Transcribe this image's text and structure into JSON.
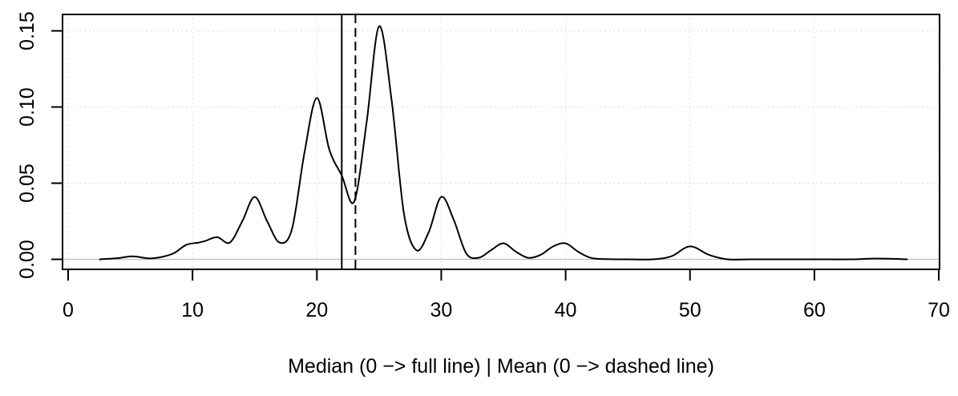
{
  "chart_data": {
    "type": "line",
    "title": "",
    "xlabel": "Median (0 −> full line) | Mean (0 −> dashed line)",
    "ylabel": "",
    "xlim": [
      0,
      70
    ],
    "ylim": [
      0,
      0.15
    ],
    "x_ticks": [
      0,
      10,
      20,
      30,
      40,
      50,
      60,
      70
    ],
    "y_ticks": [
      0.0,
      0.05,
      0.1,
      0.15
    ],
    "x_tick_labels": [
      "0",
      "10",
      "20",
      "30",
      "40",
      "50",
      "60",
      "70"
    ],
    "y_tick_labels": [
      "0.00",
      "0.05",
      "0.10",
      "0.15"
    ],
    "grid": true,
    "grid_style": "dotted",
    "series": [
      {
        "style": "solid",
        "color": "#000000",
        "x": [
          2.5,
          4,
          5.2,
          6.5,
          7.5,
          8.5,
          9.5,
          10.5,
          11,
          12,
          13,
          14,
          15,
          16,
          17,
          18,
          19,
          20,
          21,
          22,
          23,
          24,
          25,
          26,
          27,
          28,
          29,
          30,
          31,
          32,
          33,
          34,
          35,
          36,
          37,
          38,
          39,
          40,
          41,
          42,
          43,
          45,
          47,
          48.5,
          50,
          51.5,
          53,
          55,
          60,
          63,
          65,
          67.5
        ],
        "y": [
          0.0,
          0.0008,
          0.002,
          0.0006,
          0.0015,
          0.004,
          0.0095,
          0.011,
          0.012,
          0.0145,
          0.011,
          0.025,
          0.041,
          0.025,
          0.011,
          0.02,
          0.07,
          0.106,
          0.072,
          0.055,
          0.038,
          0.09,
          0.153,
          0.105,
          0.03,
          0.006,
          0.018,
          0.041,
          0.026,
          0.004,
          0.001,
          0.006,
          0.0105,
          0.005,
          0.001,
          0.003,
          0.0085,
          0.0105,
          0.005,
          0.001,
          0.0002,
          0.0,
          0.0,
          0.002,
          0.0085,
          0.003,
          0.0,
          0.0,
          0.0,
          0.0,
          0.0005,
          0.0
        ]
      }
    ],
    "vlines": [
      {
        "label": "Median",
        "x": 22,
        "style": "solid"
      },
      {
        "label": "Mean",
        "x": 23.1,
        "style": "dashed"
      }
    ]
  }
}
